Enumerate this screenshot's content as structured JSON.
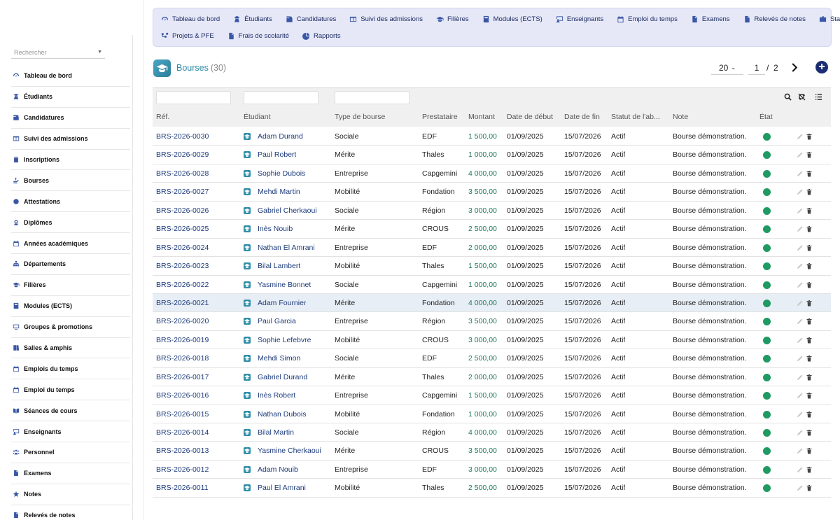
{
  "sidebar": {
    "search_placeholder": "Rechercher",
    "items": [
      {
        "label": "Tableau de bord",
        "icon": "dashboard-icon"
      },
      {
        "label": "Étudiants",
        "icon": "student-icon"
      },
      {
        "label": "Candidatures",
        "icon": "application-icon"
      },
      {
        "label": "Suivi des admissions",
        "icon": "columns-icon"
      },
      {
        "label": "Inscriptions",
        "icon": "clipboard-icon"
      },
      {
        "label": "Bourses",
        "icon": "scholarship-icon"
      },
      {
        "label": "Attestations",
        "icon": "certificate-icon"
      },
      {
        "label": "Diplômes",
        "icon": "medal-icon"
      },
      {
        "label": "Années académiques",
        "icon": "calendar-icon"
      },
      {
        "label": "Départements",
        "icon": "org-chart-icon"
      },
      {
        "label": "Filières",
        "icon": "graduation-cap-icon"
      },
      {
        "label": "Modules (ECTS)",
        "icon": "book-icon"
      },
      {
        "label": "Groupes & promotions",
        "icon": "monitor-icon"
      },
      {
        "label": "Salles & amphis",
        "icon": "door-icon"
      },
      {
        "label": "Emplois du temps",
        "icon": "calendar-icon"
      },
      {
        "label": "Emploi du temps",
        "icon": "calendar-icon"
      },
      {
        "label": "Séances de cours",
        "icon": "open-book-icon"
      },
      {
        "label": "Enseignants",
        "icon": "teacher-icon"
      },
      {
        "label": "Personnel",
        "icon": "users-icon"
      },
      {
        "label": "Examens",
        "icon": "document-icon"
      },
      {
        "label": "Notes",
        "icon": "star-icon"
      },
      {
        "label": "Relevés de notes",
        "icon": "document-icon"
      }
    ]
  },
  "topnav": {
    "row1": [
      {
        "label": "Tableau de bord",
        "icon": "dashboard-icon"
      },
      {
        "label": "Étudiants",
        "icon": "student-icon"
      },
      {
        "label": "Candidatures",
        "icon": "application-icon"
      },
      {
        "label": "Suivi des admissions",
        "icon": "columns-icon"
      },
      {
        "label": "Filières",
        "icon": "graduation-cap-icon"
      },
      {
        "label": "Modules (ECTS)",
        "icon": "book-icon"
      },
      {
        "label": "Enseignants",
        "icon": "teacher-icon"
      },
      {
        "label": "Emploi du temps",
        "icon": "calendar-icon"
      },
      {
        "label": "Examens",
        "icon": "document-icon"
      },
      {
        "label": "Relevés de notes",
        "icon": "document-icon"
      },
      {
        "label": "Stages",
        "icon": "briefcase-icon"
      }
    ],
    "row2": [
      {
        "label": "Projets & PFE",
        "icon": "project-icon"
      },
      {
        "label": "Frais de scolarité",
        "icon": "document-icon"
      },
      {
        "label": "Rapports",
        "icon": "pie-chart-icon"
      }
    ]
  },
  "header": {
    "title": "Bourses",
    "count": "(30)",
    "page_size": "20",
    "current_page": "1",
    "page_sep": "/",
    "total_pages": "2",
    "add_label": "+"
  },
  "table": {
    "columns": [
      "Réf.",
      "Étudiant",
      "Type de bourse",
      "Prestataire",
      "Montant",
      "Date de début",
      "Date de fin",
      "Statut de l'ab...",
      "Note",
      "État"
    ],
    "rows": [
      [
        "BRS-2026-0030",
        "Adam Durand",
        "Sociale",
        "EDF",
        "1 500,00",
        "01/09/2025",
        "15/07/2026",
        "Actif",
        "Bourse démonstration."
      ],
      [
        "BRS-2026-0029",
        "Paul Robert",
        "Mérite",
        "Thales",
        "1 000,00",
        "01/09/2025",
        "15/07/2026",
        "Actif",
        "Bourse démonstration."
      ],
      [
        "BRS-2026-0028",
        "Sophie Dubois",
        "Entreprise",
        "Capgemini",
        "4 000,00",
        "01/09/2025",
        "15/07/2026",
        "Actif",
        "Bourse démonstration."
      ],
      [
        "BRS-2026-0027",
        "Mehdi Martin",
        "Mobilité",
        "Fondation",
        "3 500,00",
        "01/09/2025",
        "15/07/2026",
        "Actif",
        "Bourse démonstration."
      ],
      [
        "BRS-2026-0026",
        "Gabriel Cherkaoui",
        "Sociale",
        "Région",
        "3 000,00",
        "01/09/2025",
        "15/07/2026",
        "Actif",
        "Bourse démonstration."
      ],
      [
        "BRS-2026-0025",
        "Inès Nouib",
        "Mérite",
        "CROUS",
        "2 500,00",
        "01/09/2025",
        "15/07/2026",
        "Actif",
        "Bourse démonstration."
      ],
      [
        "BRS-2026-0024",
        "Nathan El Amrani",
        "Entreprise",
        "EDF",
        "2 000,00",
        "01/09/2025",
        "15/07/2026",
        "Actif",
        "Bourse démonstration."
      ],
      [
        "BRS-2026-0023",
        "Bilal Lambert",
        "Mobilité",
        "Thales",
        "1 500,00",
        "01/09/2025",
        "15/07/2026",
        "Actif",
        "Bourse démonstration."
      ],
      [
        "BRS-2026-0022",
        "Yasmine Bonnet",
        "Sociale",
        "Capgemini",
        "1 000,00",
        "01/09/2025",
        "15/07/2026",
        "Actif",
        "Bourse démonstration."
      ],
      [
        "BRS-2026-0021",
        "Adam Fournier",
        "Mérite",
        "Fondation",
        "4 000,00",
        "01/09/2025",
        "15/07/2026",
        "Actif",
        "Bourse démonstration."
      ],
      [
        "BRS-2026-0020",
        "Paul Garcia",
        "Entreprise",
        "Région",
        "3 500,00",
        "01/09/2025",
        "15/07/2026",
        "Actif",
        "Bourse démonstration."
      ],
      [
        "BRS-2026-0019",
        "Sophie Lefebvre",
        "Mobilité",
        "CROUS",
        "3 000,00",
        "01/09/2025",
        "15/07/2026",
        "Actif",
        "Bourse démonstration."
      ],
      [
        "BRS-2026-0018",
        "Mehdi Simon",
        "Sociale",
        "EDF",
        "2 500,00",
        "01/09/2025",
        "15/07/2026",
        "Actif",
        "Bourse démonstration."
      ],
      [
        "BRS-2026-0017",
        "Gabriel Durand",
        "Mérite",
        "Thales",
        "2 000,00",
        "01/09/2025",
        "15/07/2026",
        "Actif",
        "Bourse démonstration."
      ],
      [
        "BRS-2026-0016",
        "Inès Robert",
        "Entreprise",
        "Capgemini",
        "1 500,00",
        "01/09/2025",
        "15/07/2026",
        "Actif",
        "Bourse démonstration."
      ],
      [
        "BRS-2026-0015",
        "Nathan Dubois",
        "Mobilité",
        "Fondation",
        "1 000,00",
        "01/09/2025",
        "15/07/2026",
        "Actif",
        "Bourse démonstration."
      ],
      [
        "BRS-2026-0014",
        "Bilal Martin",
        "Sociale",
        "Région",
        "4 000,00",
        "01/09/2025",
        "15/07/2026",
        "Actif",
        "Bourse démonstration."
      ],
      [
        "BRS-2026-0013",
        "Yasmine Cherkaoui",
        "Mérite",
        "CROUS",
        "3 500,00",
        "01/09/2025",
        "15/07/2026",
        "Actif",
        "Bourse démonstration."
      ],
      [
        "BRS-2026-0012",
        "Adam Nouib",
        "Entreprise",
        "EDF",
        "3 000,00",
        "01/09/2025",
        "15/07/2026",
        "Actif",
        "Bourse démonstration."
      ],
      [
        "BRS-2026-0011",
        "Paul El Amrani",
        "Mobilité",
        "Thales",
        "2 500,00",
        "01/09/2025",
        "15/07/2026",
        "Actif",
        "Bourse démonstration."
      ]
    ],
    "highlighted_row": 9,
    "state_color": "#1e9a62"
  },
  "colors": {
    "accent": "#1c2e73",
    "nav_bg": "#e6e8f8",
    "title": "#2b8aa7",
    "link": "#1b3a7a",
    "amount": "#1f7a5a"
  }
}
